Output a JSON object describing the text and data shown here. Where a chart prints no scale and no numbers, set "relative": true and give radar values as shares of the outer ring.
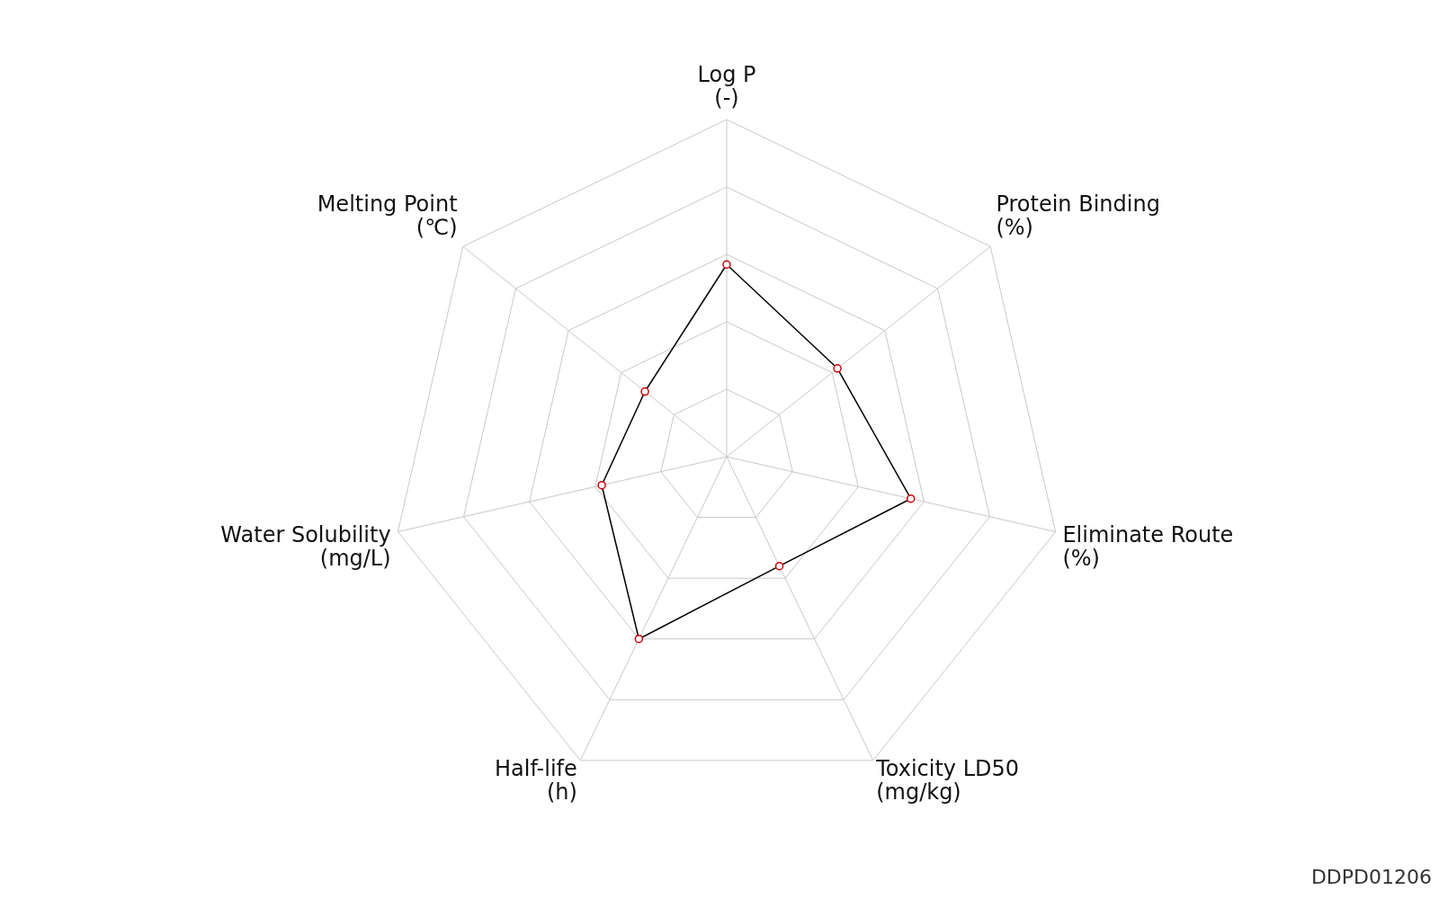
{
  "chart_data": {
    "type": "radar",
    "relative": true,
    "categories": [
      "Log P\n(-)",
      "Protein Binding\n(%)",
      "Eliminate Route\n(%)",
      "Toxicity LD50\n(mg/kg)",
      "Half-life\n(h)",
      "Water Solubility\n(mg/L)",
      "Melting Point\n(℃)"
    ],
    "series": [
      {
        "color": "#000000",
        "values": [
          0.57,
          0.42,
          0.56,
          0.36,
          0.6,
          0.38,
          0.31
        ]
      }
    ],
    "marker": "circle",
    "grid": true,
    "legend": false,
    "annotations": [
      "DDPD01206"
    ]
  }
}
